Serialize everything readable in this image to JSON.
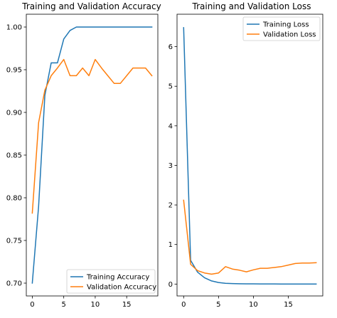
{
  "chart_data": [
    {
      "type": "line",
      "title": "Training and Validation Accuracy",
      "xlabel": "",
      "ylabel": "",
      "xlim": [
        -0.95,
        19.95
      ],
      "ylim": [
        0.685,
        1.015
      ],
      "xticks": [
        0,
        5,
        10,
        15
      ],
      "xtick_labels": [
        "0",
        "5",
        "10",
        "15"
      ],
      "yticks": [
        0.7,
        0.75,
        0.8,
        0.85,
        0.9,
        0.95,
        1.0
      ],
      "ytick_labels": [
        "0.70",
        "0.75",
        "0.80",
        "0.85",
        "0.90",
        "0.95",
        "1.00"
      ],
      "legend_position": "bottom-right",
      "x": [
        0,
        1,
        2,
        3,
        4,
        5,
        6,
        7,
        8,
        9,
        10,
        11,
        12,
        13,
        14,
        15,
        16,
        17,
        18,
        19
      ],
      "series": [
        {
          "name": "Training Accuracy",
          "color": "#1f77b4",
          "values": [
            0.7,
            0.79,
            0.92,
            0.958,
            0.958,
            0.986,
            0.996,
            1.0,
            1.0,
            1.0,
            1.0,
            1.0,
            1.0,
            1.0,
            1.0,
            1.0,
            1.0,
            1.0,
            1.0,
            1.0
          ]
        },
        {
          "name": "Validation Accuracy",
          "color": "#ff7f0e",
          "values": [
            0.782,
            0.888,
            0.926,
            0.943,
            0.952,
            0.962,
            0.943,
            0.943,
            0.952,
            0.943,
            0.962,
            0.952,
            0.943,
            0.934,
            0.934,
            0.943,
            0.952,
            0.952,
            0.952,
            0.943
          ]
        }
      ]
    },
    {
      "type": "line",
      "title": "Training and Validation Loss",
      "xlabel": "",
      "ylabel": "",
      "xlim": [
        -0.95,
        19.95
      ],
      "ylim": [
        -0.3,
        6.82
      ],
      "xticks": [
        0,
        5,
        10,
        15
      ],
      "xtick_labels": [
        "0",
        "5",
        "10",
        "15"
      ],
      "yticks": [
        0,
        1,
        2,
        3,
        4,
        5,
        6
      ],
      "ytick_labels": [
        "0",
        "1",
        "2",
        "3",
        "4",
        "5",
        "6"
      ],
      "legend_position": "top-right",
      "x": [
        0,
        1,
        2,
        3,
        4,
        5,
        6,
        7,
        8,
        9,
        10,
        11,
        12,
        13,
        14,
        15,
        16,
        17,
        18,
        19
      ],
      "series": [
        {
          "name": "Training Loss",
          "color": "#1f77b4",
          "values": [
            6.48,
            0.6,
            0.3,
            0.16,
            0.08,
            0.04,
            0.02,
            0.012,
            0.008,
            0.006,
            0.005,
            0.004,
            0.003,
            0.003,
            0.002,
            0.002,
            0.002,
            0.002,
            0.002,
            0.002
          ]
        },
        {
          "name": "Validation Loss",
          "color": "#ff7f0e",
          "values": [
            2.12,
            0.5,
            0.34,
            0.28,
            0.25,
            0.28,
            0.44,
            0.38,
            0.35,
            0.31,
            0.36,
            0.4,
            0.4,
            0.42,
            0.44,
            0.48,
            0.52,
            0.53,
            0.53,
            0.54
          ]
        }
      ]
    }
  ]
}
